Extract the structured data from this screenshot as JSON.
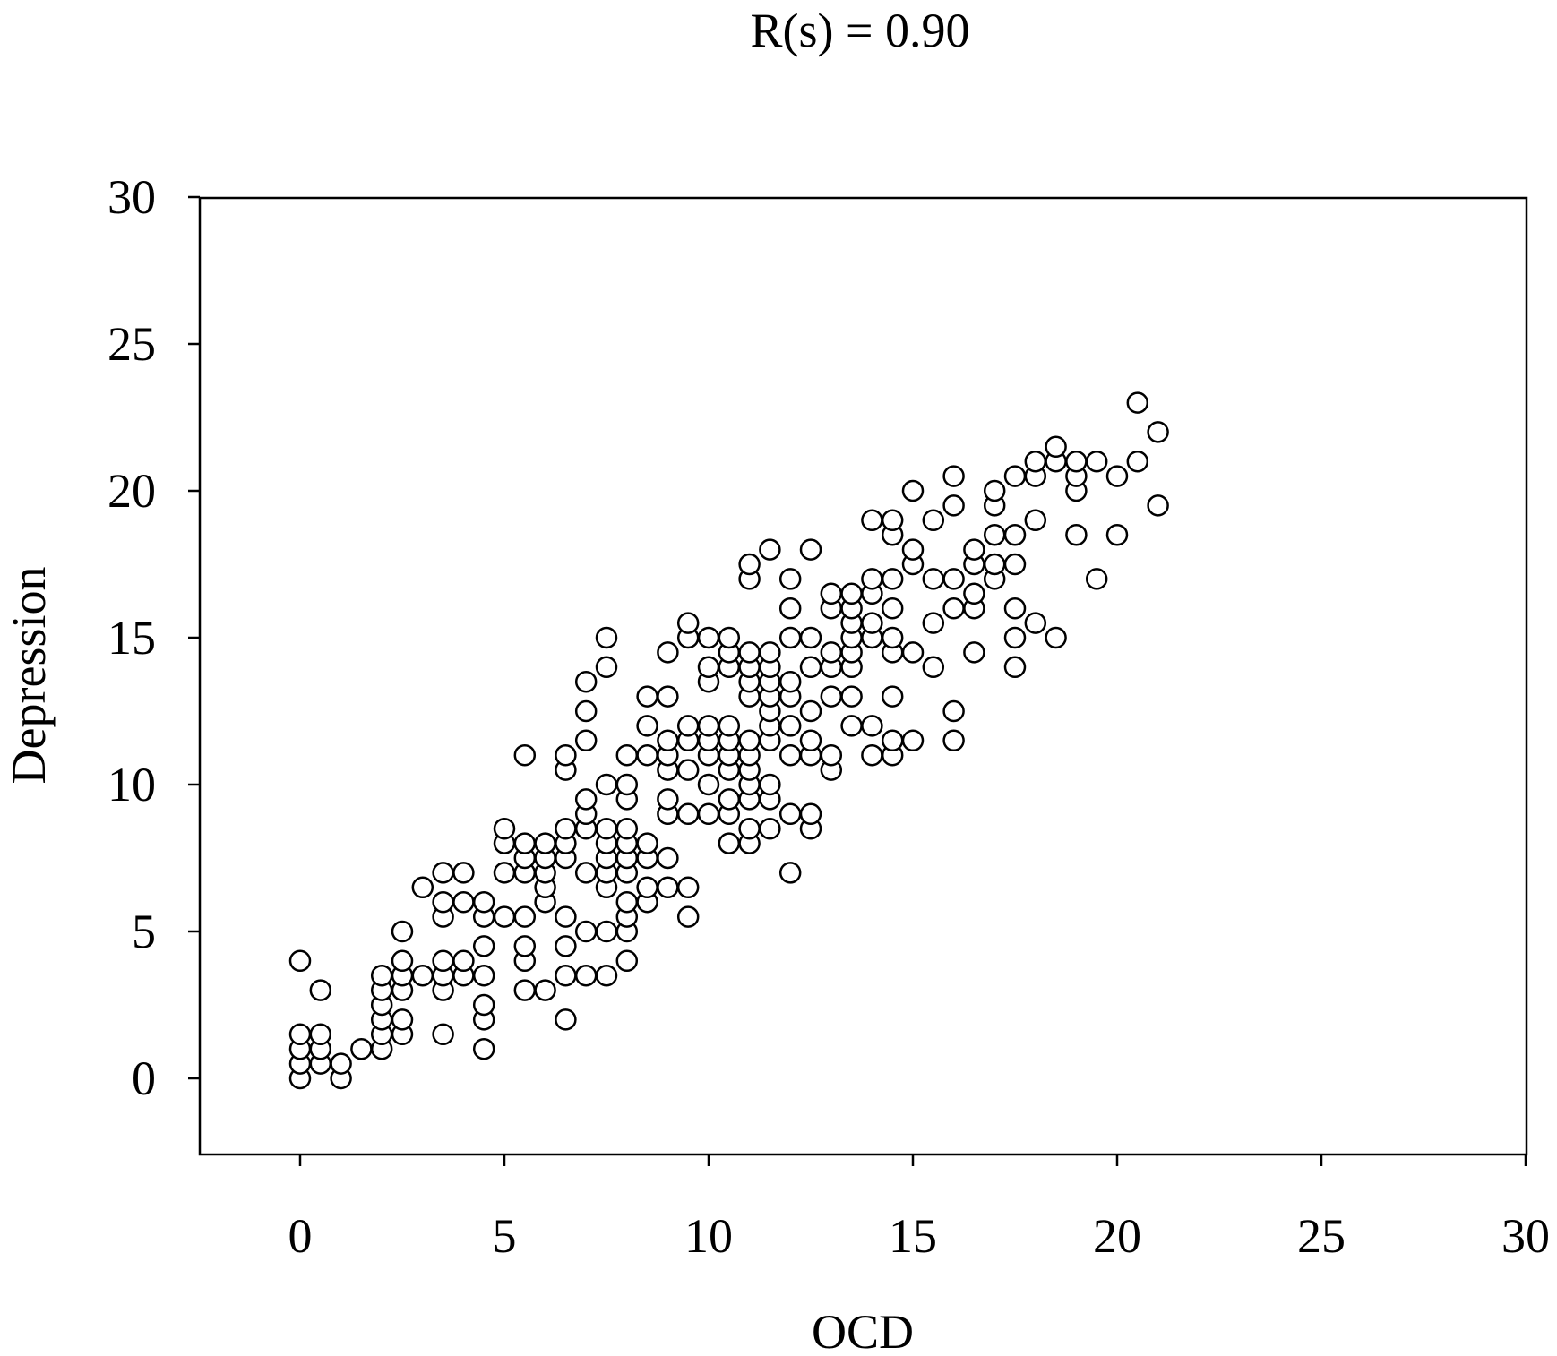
{
  "chart_data": {
    "type": "scatter",
    "title": "R(s) = 0.90",
    "xlabel": "OCD",
    "ylabel": "Depression",
    "xlim": [
      -2.5,
      30
    ],
    "ylim": [
      -2.5,
      30
    ],
    "xticks": [
      "0",
      "5",
      "10",
      "15",
      "20",
      "25",
      "30"
    ],
    "yticks": [
      "0",
      "5",
      "10",
      "15",
      "20",
      "25",
      "30"
    ],
    "grid": false,
    "legend": "none",
    "marker": "open-circle",
    "marker_color": "#000000",
    "points": [
      [
        0,
        0
      ],
      [
        0,
        0.5
      ],
      [
        0,
        1
      ],
      [
        0,
        1.5
      ],
      [
        0,
        4
      ],
      [
        0.5,
        0.5
      ],
      [
        0.5,
        1
      ],
      [
        0.5,
        1.5
      ],
      [
        0.5,
        3
      ],
      [
        1,
        0
      ],
      [
        1,
        0.5
      ],
      [
        1.5,
        1
      ],
      [
        2,
        1
      ],
      [
        2,
        1.5
      ],
      [
        2,
        2
      ],
      [
        2,
        2.5
      ],
      [
        2,
        3
      ],
      [
        2,
        3.5
      ],
      [
        2.5,
        1.5
      ],
      [
        2.5,
        2
      ],
      [
        2.5,
        3
      ],
      [
        2.5,
        3.5
      ],
      [
        2.5,
        4
      ],
      [
        2.5,
        5
      ],
      [
        3,
        3.5
      ],
      [
        3,
        6.5
      ],
      [
        3.5,
        1.5
      ],
      [
        3.5,
        3
      ],
      [
        3.5,
        3.5
      ],
      [
        3.5,
        4
      ],
      [
        3.5,
        5.5
      ],
      [
        3.5,
        6
      ],
      [
        3.5,
        7
      ],
      [
        4,
        3.5
      ],
      [
        4,
        4
      ],
      [
        4,
        6
      ],
      [
        4,
        7
      ],
      [
        4.5,
        1
      ],
      [
        4.5,
        2
      ],
      [
        4.5,
        2.5
      ],
      [
        4.5,
        3.5
      ],
      [
        4.5,
        4.5
      ],
      [
        4.5,
        5.5
      ],
      [
        4.5,
        6
      ],
      [
        5,
        5.5
      ],
      [
        5,
        7
      ],
      [
        5,
        8
      ],
      [
        5,
        8.5
      ],
      [
        5.5,
        3
      ],
      [
        5.5,
        4
      ],
      [
        5.5,
        4.5
      ],
      [
        5.5,
        5.5
      ],
      [
        5.5,
        7
      ],
      [
        5.5,
        7.5
      ],
      [
        5.5,
        8
      ],
      [
        5.5,
        11
      ],
      [
        6,
        3
      ],
      [
        6,
        6
      ],
      [
        6,
        6.5
      ],
      [
        6,
        7
      ],
      [
        6,
        7.5
      ],
      [
        6,
        8
      ],
      [
        6.5,
        2
      ],
      [
        6.5,
        3.5
      ],
      [
        6.5,
        4.5
      ],
      [
        6.5,
        5.5
      ],
      [
        6.5,
        7.5
      ],
      [
        6.5,
        8
      ],
      [
        6.5,
        8.5
      ],
      [
        6.5,
        10.5
      ],
      [
        6.5,
        11
      ],
      [
        7,
        3.5
      ],
      [
        7,
        5
      ],
      [
        7,
        7
      ],
      [
        7,
        8.5
      ],
      [
        7,
        9
      ],
      [
        7,
        9.5
      ],
      [
        7,
        11.5
      ],
      [
        7,
        12.5
      ],
      [
        7,
        13.5
      ],
      [
        7.5,
        3.5
      ],
      [
        7.5,
        5
      ],
      [
        7.5,
        6.5
      ],
      [
        7.5,
        7
      ],
      [
        7.5,
        7.5
      ],
      [
        7.5,
        8
      ],
      [
        7.5,
        8.5
      ],
      [
        7.5,
        10
      ],
      [
        7.5,
        14
      ],
      [
        7.5,
        15
      ],
      [
        8,
        4
      ],
      [
        8,
        5
      ],
      [
        8,
        5.5
      ],
      [
        8,
        6
      ],
      [
        8,
        7
      ],
      [
        8,
        7.5
      ],
      [
        8,
        8
      ],
      [
        8,
        8.5
      ],
      [
        8,
        9.5
      ],
      [
        8,
        10
      ],
      [
        8,
        11
      ],
      [
        8.5,
        6
      ],
      [
        8.5,
        6.5
      ],
      [
        8.5,
        7.5
      ],
      [
        8.5,
        8
      ],
      [
        8.5,
        11
      ],
      [
        8.5,
        12
      ],
      [
        8.5,
        13
      ],
      [
        9,
        6.5
      ],
      [
        9,
        7.5
      ],
      [
        9,
        9
      ],
      [
        9,
        9.5
      ],
      [
        9,
        10.5
      ],
      [
        9,
        11
      ],
      [
        9,
        11.5
      ],
      [
        9,
        13
      ],
      [
        9,
        14.5
      ],
      [
        9.5,
        5.5
      ],
      [
        9.5,
        6.5
      ],
      [
        9.5,
        9
      ],
      [
        9.5,
        10.5
      ],
      [
        9.5,
        11.5
      ],
      [
        9.5,
        12
      ],
      [
        9.5,
        15
      ],
      [
        9.5,
        15.5
      ],
      [
        10,
        9
      ],
      [
        10,
        10
      ],
      [
        10,
        11
      ],
      [
        10,
        11.5
      ],
      [
        10,
        12
      ],
      [
        10,
        13.5
      ],
      [
        10,
        14
      ],
      [
        10,
        15
      ],
      [
        10.5,
        8
      ],
      [
        10.5,
        9
      ],
      [
        10.5,
        9.5
      ],
      [
        10.5,
        10.5
      ],
      [
        10.5,
        11
      ],
      [
        10.5,
        11.5
      ],
      [
        10.5,
        12
      ],
      [
        10.5,
        14
      ],
      [
        10.5,
        14.5
      ],
      [
        10.5,
        15
      ],
      [
        11,
        8
      ],
      [
        11,
        8.5
      ],
      [
        11,
        9.5
      ],
      [
        11,
        10
      ],
      [
        11,
        10.5
      ],
      [
        11,
        11
      ],
      [
        11,
        11.5
      ],
      [
        11,
        13
      ],
      [
        11,
        13.5
      ],
      [
        11,
        14
      ],
      [
        11,
        14.5
      ],
      [
        11,
        17
      ],
      [
        11,
        17.5
      ],
      [
        11.5,
        8.5
      ],
      [
        11.5,
        9.5
      ],
      [
        11.5,
        10
      ],
      [
        11.5,
        11.5
      ],
      [
        11.5,
        12
      ],
      [
        11.5,
        12.5
      ],
      [
        11.5,
        13
      ],
      [
        11.5,
        13.5
      ],
      [
        11.5,
        14
      ],
      [
        11.5,
        14.5
      ],
      [
        11.5,
        18
      ],
      [
        12,
        7
      ],
      [
        12,
        9
      ],
      [
        12,
        11
      ],
      [
        12,
        12
      ],
      [
        12,
        13
      ],
      [
        12,
        13.5
      ],
      [
        12,
        15
      ],
      [
        12,
        16
      ],
      [
        12,
        17
      ],
      [
        12.5,
        8.5
      ],
      [
        12.5,
        9
      ],
      [
        12.5,
        11
      ],
      [
        12.5,
        11.5
      ],
      [
        12.5,
        12.5
      ],
      [
        12.5,
        14
      ],
      [
        12.5,
        15
      ],
      [
        12.5,
        18
      ],
      [
        13,
        10.5
      ],
      [
        13,
        11
      ],
      [
        13,
        13
      ],
      [
        13,
        14
      ],
      [
        13,
        14.5
      ],
      [
        13,
        16
      ],
      [
        13,
        16.5
      ],
      [
        13.5,
        12
      ],
      [
        13.5,
        13
      ],
      [
        13.5,
        14
      ],
      [
        13.5,
        14.5
      ],
      [
        13.5,
        15
      ],
      [
        13.5,
        15.5
      ],
      [
        13.5,
        16
      ],
      [
        13.5,
        16.5
      ],
      [
        14,
        11
      ],
      [
        14,
        12
      ],
      [
        14,
        15
      ],
      [
        14,
        15.5
      ],
      [
        14,
        16.5
      ],
      [
        14,
        17
      ],
      [
        14,
        19
      ],
      [
        14.5,
        11
      ],
      [
        14.5,
        11.5
      ],
      [
        14.5,
        13
      ],
      [
        14.5,
        14.5
      ],
      [
        14.5,
        15
      ],
      [
        14.5,
        16
      ],
      [
        14.5,
        17
      ],
      [
        14.5,
        18.5
      ],
      [
        14.5,
        19
      ],
      [
        15,
        11.5
      ],
      [
        15,
        14.5
      ],
      [
        15,
        17.5
      ],
      [
        15,
        18
      ],
      [
        15,
        20
      ],
      [
        15.5,
        14
      ],
      [
        15.5,
        15.5
      ],
      [
        15.5,
        17
      ],
      [
        15.5,
        19
      ],
      [
        16,
        11.5
      ],
      [
        16,
        12.5
      ],
      [
        16,
        16
      ],
      [
        16,
        17
      ],
      [
        16,
        19.5
      ],
      [
        16,
        20.5
      ],
      [
        16.5,
        14.5
      ],
      [
        16.5,
        16
      ],
      [
        16.5,
        16.5
      ],
      [
        16.5,
        17.5
      ],
      [
        16.5,
        18
      ],
      [
        17,
        17
      ],
      [
        17,
        17.5
      ],
      [
        17,
        18.5
      ],
      [
        17,
        19.5
      ],
      [
        17,
        20
      ],
      [
        17.5,
        14
      ],
      [
        17.5,
        15
      ],
      [
        17.5,
        16
      ],
      [
        17.5,
        17.5
      ],
      [
        17.5,
        18.5
      ],
      [
        17.5,
        20.5
      ],
      [
        18,
        15.5
      ],
      [
        18,
        19
      ],
      [
        18,
        20.5
      ],
      [
        18,
        21
      ],
      [
        18.5,
        15
      ],
      [
        18.5,
        21
      ],
      [
        18.5,
        21.5
      ],
      [
        19,
        18.5
      ],
      [
        19,
        20
      ],
      [
        19,
        20.5
      ],
      [
        19,
        21
      ],
      [
        19.5,
        17
      ],
      [
        19.5,
        21
      ],
      [
        20,
        18.5
      ],
      [
        20,
        20.5
      ],
      [
        20.5,
        21
      ],
      [
        20.5,
        23
      ],
      [
        21,
        19.5
      ],
      [
        21,
        22
      ]
    ]
  }
}
